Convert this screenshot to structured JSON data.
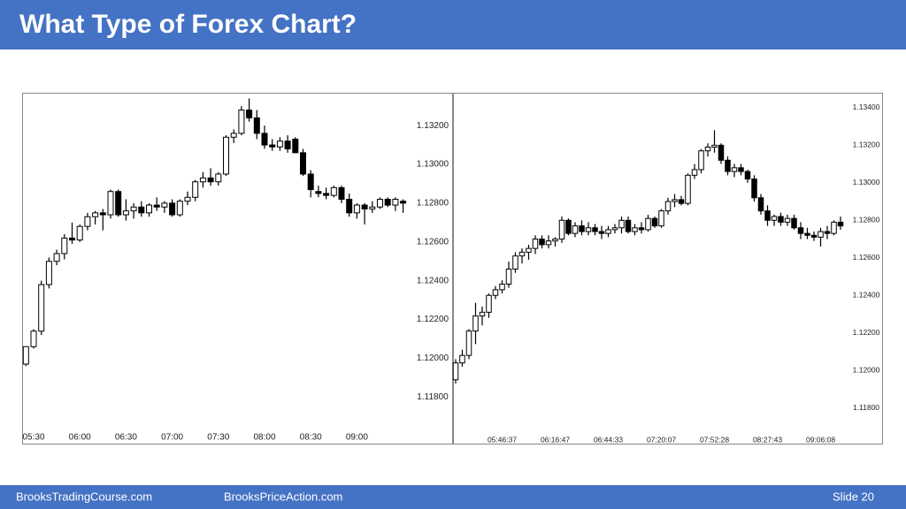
{
  "slide": {
    "title": "What Type of Forex Chart?",
    "footer_left": "BrooksTradingCourse.com",
    "footer_middle": "BrooksPriceAction.com",
    "slide_number": "Slide  20"
  },
  "chart_data": [
    {
      "type": "candlestick",
      "up_color": "#ffffff",
      "down_color": "#000000",
      "categories": [
        null,
        "05:30",
        null,
        null,
        null,
        null,
        null,
        "06:00",
        null,
        null,
        null,
        null,
        null,
        "06:30",
        null,
        null,
        null,
        null,
        null,
        "07:00",
        null,
        null,
        null,
        null,
        null,
        "07:30",
        null,
        null,
        null,
        null,
        null,
        "08:00",
        null,
        null,
        null,
        null,
        null,
        "08:30",
        null,
        null,
        null,
        null,
        null,
        "09:00",
        null,
        null,
        null,
        null,
        null,
        null
      ],
      "open": [
        1.1197,
        1.1206,
        1.1214,
        1.1238,
        1.125,
        1.1254,
        1.1262,
        1.1261,
        1.1268,
        1.1273,
        1.1275,
        1.1274,
        1.1286,
        1.1274,
        1.1276,
        1.1278,
        1.1275,
        1.1279,
        1.1278,
        1.128,
        1.1274,
        1.1281,
        1.1283,
        1.1291,
        1.1293,
        1.1291,
        1.1295,
        1.1314,
        1.1316,
        1.1328,
        1.1324,
        1.1316,
        1.131,
        1.1309,
        1.1312,
        1.1313,
        1.1306,
        1.1295,
        1.1286,
        1.1285,
        1.1284,
        1.1288,
        1.1282,
        1.1275,
        1.1279,
        1.1277,
        1.1278,
        1.1282,
        1.1279,
        1.1281
      ],
      "high": [
        1.1206,
        1.1215,
        1.124,
        1.1252,
        1.1256,
        1.1264,
        1.127,
        1.1269,
        1.1275,
        1.1276,
        1.1277,
        1.1287,
        1.1287,
        1.1282,
        1.128,
        1.1281,
        1.128,
        1.1283,
        1.1281,
        1.1282,
        1.1282,
        1.1286,
        1.1292,
        1.1296,
        1.1298,
        1.1296,
        1.1315,
        1.1318,
        1.133,
        1.1334,
        1.1328,
        1.132,
        1.1313,
        1.1314,
        1.1315,
        1.1314,
        1.1308,
        1.1297,
        1.1289,
        1.1288,
        1.1289,
        1.1289,
        1.1285,
        1.128,
        1.128,
        1.1281,
        1.1283,
        1.1283,
        1.1283,
        1.1282
      ],
      "low": [
        1.1196,
        1.1205,
        1.1212,
        1.1236,
        1.1248,
        1.1251,
        1.1259,
        1.126,
        1.1266,
        1.1269,
        1.1266,
        1.1272,
        1.1273,
        1.1271,
        1.1272,
        1.1273,
        1.1273,
        1.1276,
        1.1275,
        1.1273,
        1.1273,
        1.1279,
        1.1281,
        1.1288,
        1.1289,
        1.1289,
        1.1294,
        1.1311,
        1.1315,
        1.1322,
        1.1313,
        1.1308,
        1.1307,
        1.1307,
        1.1306,
        1.1306,
        1.1294,
        1.1283,
        1.1283,
        1.1282,
        1.1283,
        1.128,
        1.1273,
        1.1272,
        1.1269,
        1.1275,
        1.1277,
        1.1278,
        1.1276,
        1.1275
      ],
      "close": [
        1.1206,
        1.1214,
        1.1238,
        1.125,
        1.1254,
        1.1262,
        1.1261,
        1.1268,
        1.1273,
        1.1275,
        1.1274,
        1.1286,
        1.1274,
        1.1276,
        1.1278,
        1.1275,
        1.1279,
        1.1278,
        1.128,
        1.1274,
        1.1281,
        1.1283,
        1.1291,
        1.1293,
        1.1291,
        1.1295,
        1.1314,
        1.1316,
        1.1328,
        1.1324,
        1.1316,
        1.131,
        1.1309,
        1.1312,
        1.1308,
        1.1306,
        1.1295,
        1.1287,
        1.1285,
        1.1284,
        1.1288,
        1.1282,
        1.1275,
        1.1279,
        1.1277,
        1.1278,
        1.1282,
        1.1279,
        1.1282,
        1.128
      ],
      "ylim": [
        1.1156,
        1.1336
      ],
      "yticks": [
        {
          "value": 1.118,
          "label": "1.11800"
        },
        {
          "value": 1.12,
          "label": "1.12000"
        },
        {
          "value": 1.122,
          "label": "1.12200"
        },
        {
          "value": 1.124,
          "label": "1.12400"
        },
        {
          "value": 1.126,
          "label": "1.12600"
        },
        {
          "value": 1.128,
          "label": "1.12800"
        },
        {
          "value": 1.13,
          "label": "1.13000"
        },
        {
          "value": 1.132,
          "label": "1.13200"
        }
      ]
    },
    {
      "type": "candlestick",
      "up_color": "#ffffff",
      "down_color": "#000000",
      "categories": [
        null,
        null,
        null,
        null,
        null,
        null,
        null,
        "05:46:37",
        null,
        null,
        null,
        null,
        null,
        null,
        null,
        "06:16:47",
        null,
        null,
        null,
        null,
        null,
        null,
        null,
        "06:44:33",
        null,
        null,
        null,
        null,
        null,
        null,
        null,
        "07:20:07",
        null,
        null,
        null,
        null,
        null,
        null,
        null,
        "07:52:28",
        null,
        null,
        null,
        null,
        null,
        null,
        null,
        "08:27:43",
        null,
        null,
        null,
        null,
        null,
        null,
        null,
        "09:06:08",
        null,
        null,
        null
      ],
      "open": [
        1.1195,
        1.1204,
        1.1208,
        1.1221,
        1.1229,
        1.1231,
        1.124,
        1.1243,
        1.1246,
        1.1254,
        1.1261,
        1.1263,
        1.1265,
        1.127,
        1.1267,
        1.1269,
        1.127,
        1.128,
        1.1273,
        1.1277,
        1.1274,
        1.1276,
        1.1274,
        1.1273,
        1.1275,
        1.1276,
        1.128,
        1.1274,
        1.1276,
        1.1275,
        1.1281,
        1.1277,
        1.1285,
        1.129,
        1.1291,
        1.1289,
        1.1304,
        1.1307,
        1.1317,
        1.1319,
        1.132,
        1.1312,
        1.1306,
        1.1308,
        1.1306,
        1.1302,
        1.1292,
        1.1285,
        1.128,
        1.1282,
        1.1279,
        1.1281,
        1.1276,
        1.1273,
        1.1272,
        1.1271,
        1.1274,
        1.1273,
        1.1279
      ],
      "high": [
        1.1206,
        1.1211,
        1.1222,
        1.1236,
        1.1234,
        1.1241,
        1.1245,
        1.1248,
        1.1258,
        1.1263,
        1.1265,
        1.1267,
        1.1272,
        1.1272,
        1.1272,
        1.1271,
        1.1282,
        1.1281,
        1.1279,
        1.128,
        1.1279,
        1.1278,
        1.1277,
        1.1277,
        1.1278,
        1.1282,
        1.1282,
        1.1278,
        1.1279,
        1.1283,
        1.1282,
        1.1286,
        1.1292,
        1.1294,
        1.1293,
        1.1305,
        1.131,
        1.1318,
        1.1321,
        1.1328,
        1.1321,
        1.1314,
        1.131,
        1.131,
        1.1307,
        1.1304,
        1.1294,
        1.1288,
        1.1283,
        1.1284,
        1.1283,
        1.1283,
        1.1279,
        1.1276,
        1.1274,
        1.1276,
        1.1277,
        1.128,
        1.1282
      ],
      "low": [
        1.1193,
        1.1202,
        1.1206,
        1.1214,
        1.1224,
        1.1228,
        1.1238,
        1.1241,
        1.1244,
        1.1252,
        1.1257,
        1.1259,
        1.1262,
        1.1265,
        1.1265,
        1.1266,
        1.1268,
        1.1272,
        1.1271,
        1.1272,
        1.1272,
        1.1272,
        1.127,
        1.1271,
        1.1273,
        1.1273,
        1.1273,
        1.1272,
        1.1273,
        1.1274,
        1.1276,
        1.1276,
        1.1283,
        1.1287,
        1.1288,
        1.1288,
        1.1302,
        1.1305,
        1.1314,
        1.1316,
        1.131,
        1.1304,
        1.1303,
        1.1304,
        1.13,
        1.129,
        1.1283,
        1.1277,
        1.1277,
        1.1277,
        1.1277,
        1.1275,
        1.127,
        1.127,
        1.1269,
        1.1266,
        1.127,
        1.1272,
        1.1275
      ],
      "close": [
        1.1204,
        1.1208,
        1.1221,
        1.1229,
        1.1231,
        1.124,
        1.1243,
        1.1246,
        1.1254,
        1.1261,
        1.1263,
        1.1265,
        1.127,
        1.1267,
        1.1269,
        1.127,
        1.128,
        1.1273,
        1.1277,
        1.1274,
        1.1276,
        1.1274,
        1.1273,
        1.1275,
        1.1276,
        1.128,
        1.1274,
        1.1276,
        1.1275,
        1.1281,
        1.1277,
        1.1285,
        1.129,
        1.1291,
        1.1289,
        1.1304,
        1.1307,
        1.1317,
        1.1319,
        1.132,
        1.1312,
        1.1306,
        1.1308,
        1.1306,
        1.1302,
        1.1292,
        1.1285,
        1.128,
        1.1282,
        1.1279,
        1.1281,
        1.1276,
        1.1273,
        1.1272,
        1.1271,
        1.1274,
        1.1273,
        1.1279,
        1.1277
      ],
      "ylim": [
        1.1161,
        1.1347
      ],
      "yticks": [
        {
          "value": 1.118,
          "label": "1.11800"
        },
        {
          "value": 1.12,
          "label": "1.12000"
        },
        {
          "value": 1.122,
          "label": "1.12200"
        },
        {
          "value": 1.124,
          "label": "1.12400"
        },
        {
          "value": 1.126,
          "label": "1.12600"
        },
        {
          "value": 1.128,
          "label": "1.12800"
        },
        {
          "value": 1.13,
          "label": "1.13000"
        },
        {
          "value": 1.132,
          "label": "1.13200"
        },
        {
          "value": 1.134,
          "label": "1.13400"
        }
      ]
    }
  ]
}
